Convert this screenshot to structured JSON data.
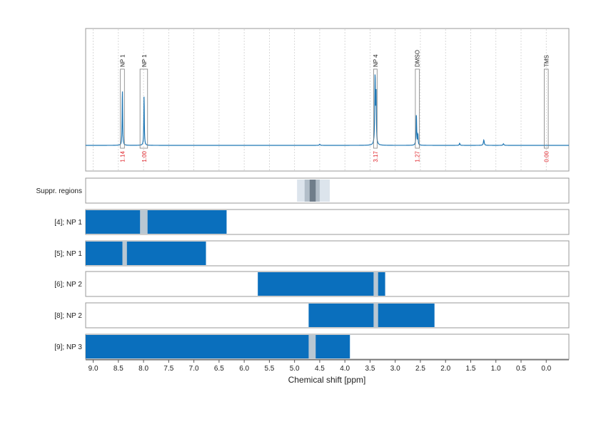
{
  "chart_data": {
    "type": "line",
    "xlabel": "Chemical shift [ppm]",
    "xlim": [
      9.15,
      -0.45
    ],
    "x_ticks": [
      "9.0",
      "8.5",
      "8.0",
      "7.5",
      "7.0",
      "6.5",
      "6.0",
      "5.5",
      "5.0",
      "4.5",
      "4.0",
      "3.5",
      "3.0",
      "2.5",
      "2.0",
      "1.5",
      "1.0",
      "0.5",
      "0.0"
    ],
    "x_tick_values": [
      9.0,
      8.5,
      8.0,
      7.5,
      7.0,
      6.5,
      6.0,
      5.5,
      5.0,
      4.5,
      4.0,
      3.5,
      3.0,
      2.5,
      2.0,
      1.5,
      1.0,
      0.5,
      0.0
    ],
    "grid": true,
    "spectrum": {
      "color": "#1f77b4",
      "baseline": 0.0,
      "peaks": [
        {
          "x": 8.42,
          "h": 0.52,
          "w": 0.006
        },
        {
          "x": 7.99,
          "h": 0.46,
          "w": 0.006
        },
        {
          "x": 3.4,
          "h": 0.64,
          "w": 0.008
        },
        {
          "x": 3.38,
          "h": 0.46,
          "w": 0.006
        },
        {
          "x": 2.58,
          "h": 0.29,
          "w": 0.007
        },
        {
          "x": 2.55,
          "h": 0.1,
          "w": 0.006
        },
        {
          "x": 1.24,
          "h": 0.05,
          "w": 0.01
        },
        {
          "x": 1.72,
          "h": 0.02,
          "w": 0.008
        },
        {
          "x": 4.5,
          "h": 0.01,
          "w": 0.01
        },
        {
          "x": 0.85,
          "h": 0.015,
          "w": 0.01
        }
      ]
    },
    "annotations": [
      {
        "label": "NP 1",
        "x": 8.42,
        "x_from": 8.46,
        "x_to": 8.38,
        "integral": "1.14"
      },
      {
        "label": "NP 1",
        "x": 7.99,
        "x_from": 8.07,
        "x_to": 7.92,
        "integral": "1.00"
      },
      {
        "label": "NP 4",
        "x": 3.39,
        "x_from": 3.43,
        "x_to": 3.36,
        "integral": "3.17"
      },
      {
        "label": "DMSO",
        "x": 2.56,
        "x_from": 2.6,
        "x_to": 2.52,
        "integral": "1.27"
      },
      {
        "label": "TMS",
        "x": 0.0,
        "x_from": 0.04,
        "x_to": -0.04,
        "integral": "0.00"
      }
    ],
    "suppressed_regions": {
      "label": "Suppr. regions",
      "bands": [
        {
          "from": 4.95,
          "to": 4.3,
          "color": "#dce4ec"
        },
        {
          "from": 4.8,
          "to": 4.5,
          "color": "#b2bec9"
        },
        {
          "from": 4.7,
          "to": 4.58,
          "color": "#6f7d8a"
        }
      ]
    },
    "region_rows": [
      {
        "label": "[4]; NP 1",
        "from": 9.15,
        "to": 6.35,
        "gap_from": 8.07,
        "gap_to": 7.92
      },
      {
        "label": "[5]; NP 1",
        "from": 9.15,
        "to": 6.76,
        "gap_from": 8.42,
        "gap_to": 8.33
      },
      {
        "label": "[6]; NP 2",
        "from": 5.73,
        "to": 3.2,
        "gap_from": 3.43,
        "gap_to": 3.34
      },
      {
        "label": "[8]; NP 2",
        "from": 4.72,
        "to": 2.22,
        "gap_from": 3.43,
        "gap_to": 3.34
      },
      {
        "label": "[9]; NP 3",
        "from": 9.15,
        "to": 3.9,
        "gap_from": 4.72,
        "gap_to": 4.58
      }
    ],
    "bar_color": "#0a6fbd",
    "gap_color": "#b9c7d2"
  }
}
